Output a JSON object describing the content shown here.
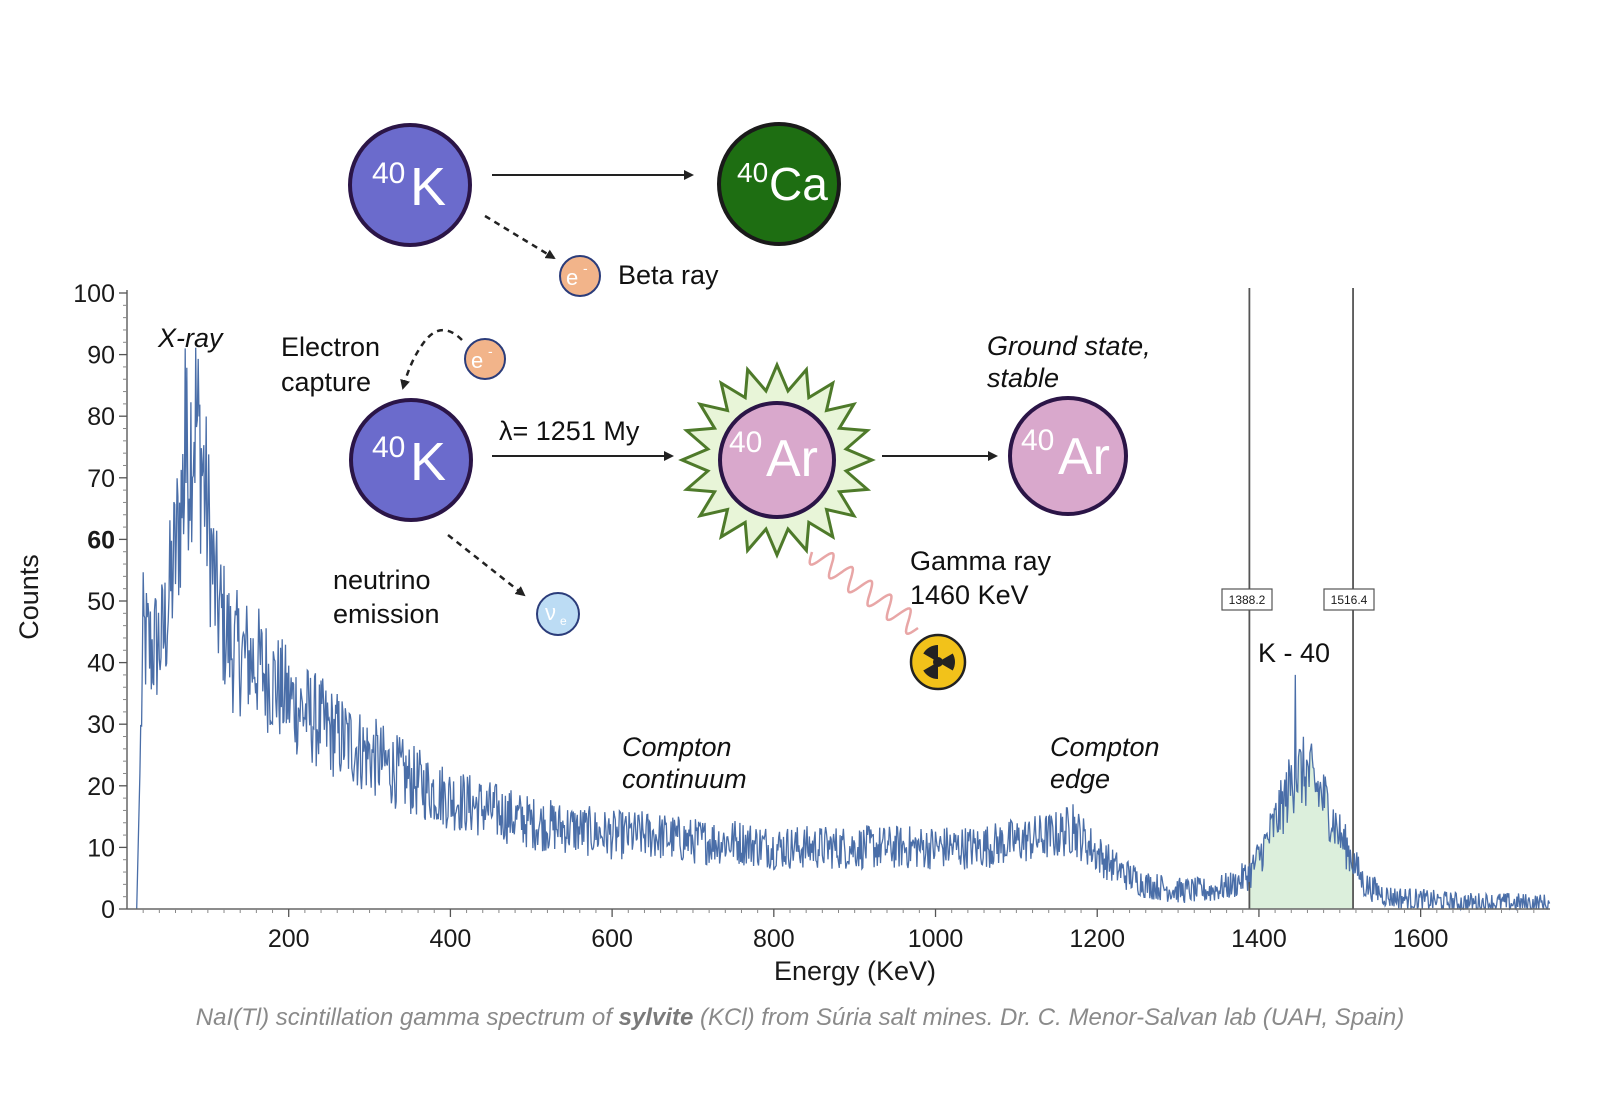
{
  "chart_data": {
    "type": "line",
    "xlabel": "Energy (KeV)",
    "ylabel": "Counts",
    "xlim": [
      0,
      1760
    ],
    "ylim": [
      0,
      100
    ],
    "x_ticks": [
      200,
      400,
      600,
      800,
      1000,
      1200,
      1400,
      1600
    ],
    "y_ticks": [
      0,
      10,
      20,
      30,
      40,
      50,
      60,
      70,
      80,
      90,
      100
    ],
    "y_tick_bold": 60,
    "line_color": "#4a6ea8",
    "fill_color": "#dcefdc",
    "grid": false,
    "series": [
      {
        "x": [
          12,
          20,
          30,
          45,
          60,
          75,
          85,
          95,
          110,
          130,
          160,
          200,
          250,
          300,
          350,
          400,
          450,
          500,
          550,
          600,
          650,
          700,
          750,
          800,
          850,
          900,
          950,
          1000,
          1050,
          1100,
          1150,
          1170,
          1200,
          1230,
          1260,
          1300,
          1340,
          1370,
          1390,
          1410,
          1430,
          1445,
          1460,
          1480,
          1500,
          1516,
          1530,
          1560,
          1600,
          1650,
          1700,
          1760
        ],
        "y": [
          0,
          44,
          42,
          44,
          58,
          74,
          80,
          70,
          50,
          42,
          40,
          34,
          29,
          25,
          21,
          18,
          16,
          14,
          13,
          12,
          12,
          11,
          11,
          10,
          10,
          10,
          10,
          10,
          10,
          11,
          12,
          13,
          9,
          6,
          4,
          3,
          3,
          4,
          6,
          11,
          17,
          22,
          22,
          18,
          12,
          8,
          4,
          2,
          1.5,
          1,
          1,
          0.8
        ]
      }
    ],
    "spikes": [
      {
        "x": 72,
        "y": 91
      },
      {
        "x": 1170,
        "y": 17
      },
      {
        "x": 1445,
        "y": 38
      }
    ],
    "roi_lines": [
      1388.2,
      1516.4
    ],
    "roi_labels": [
      "1388.2",
      "1516.4"
    ],
    "roi_fill_range": [
      1388.2,
      1516.4
    ],
    "annotations": {
      "xray": "X-ray",
      "k40": "K - 40",
      "compton_continuum_1": "Compton",
      "compton_continuum_2": "continuum",
      "compton_edge_1": "Compton",
      "compton_edge_2": "edge"
    }
  },
  "diagram": {
    "k40_mass": "40",
    "k40_symbol": "K",
    "ca40_mass": "40",
    "ca40_symbol": "Ca",
    "ar40_mass": "40",
    "ar40_symbol": "Ar",
    "electron_label": "e",
    "electron_sup": "-",
    "beta_ray": "Beta ray",
    "electron_capture_1": "Electron",
    "electron_capture_2": "capture",
    "lambda_label": "λ= 1251 My",
    "ground_state_1": "Ground state,",
    "ground_state_2": "stable",
    "neutrino_1": "neutrino",
    "neutrino_2": "emission",
    "neutrino_symbol": "ν",
    "neutrino_sub": "e",
    "gamma_1": "Gamma ray",
    "gamma_2": "1460 KeV",
    "colors": {
      "k_fill": "#6b6bcc",
      "ca_fill": "#1e6e12",
      "ar_fill": "#d9a8cc",
      "electron_fill": "#f2b48a",
      "neutrino_fill": "#bcdcf4",
      "outline": "#2b1547"
    }
  },
  "caption": {
    "part1": "NaI(Tl) scintillation gamma spectrum of ",
    "bold": "sylvite",
    "part2": " (KCl) from Súria salt mines. Dr. C. Menor-Salvan lab (UAH, Spain)"
  }
}
